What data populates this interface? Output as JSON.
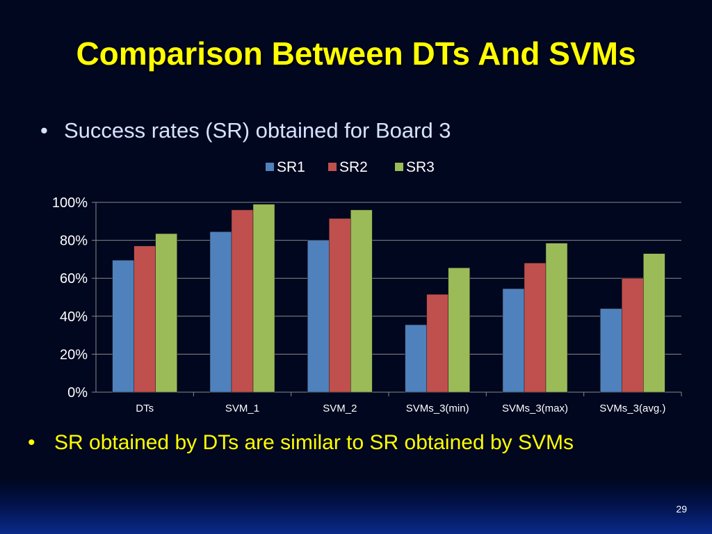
{
  "slide": {
    "title": "Comparison Between DTs And SVMs",
    "bullet1": "Success rates (SR) obtained for Board 3",
    "bullet2": "SR obtained by DTs are similar to  SR obtained by SVMs",
    "bullet_symbol": "•",
    "page_number": "29"
  },
  "colors": {
    "background": "#00071f",
    "title": "#ffff00",
    "bullet1_text": "#d6e3ff",
    "bullet2_text": "#ffff00",
    "axis_text": "#ffffff",
    "gridline": "#8a8a8a"
  },
  "chart_data": {
    "type": "bar",
    "categories": [
      "DTs",
      "SVM_1",
      "SVM_2",
      "SVMs_3(min)",
      "SVMs_3(max)",
      "SVMs_3(avg.)"
    ],
    "series": [
      {
        "name": "SR1",
        "color": "#4f81bd",
        "values": [
          69.5,
          84.5,
          80,
          35.5,
          54.5,
          44
        ]
      },
      {
        "name": "SR2",
        "color": "#c0504d",
        "values": [
          77,
          96,
          91.5,
          51.5,
          68,
          60
        ]
      },
      {
        "name": "SR3",
        "color": "#9bbb59",
        "values": [
          83.5,
          99,
          96,
          65.5,
          78.5,
          73
        ]
      }
    ],
    "ylim": [
      0,
      100
    ],
    "yticks": [
      "0%",
      "20%",
      "40%",
      "60%",
      "80%",
      "100%"
    ],
    "grid": true,
    "legend_position": "top"
  }
}
